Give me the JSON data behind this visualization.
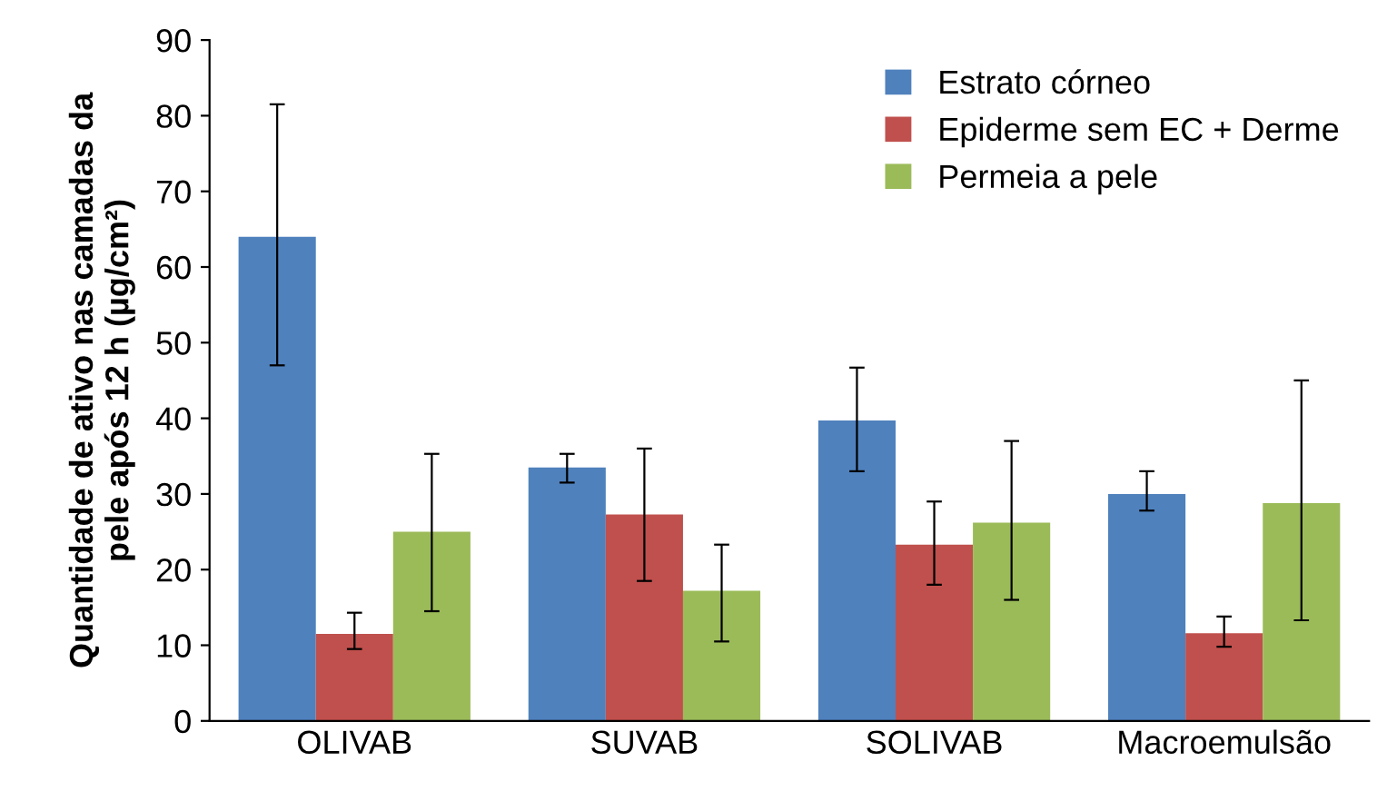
{
  "chart_data": {
    "type": "bar",
    "ylabel": "Quantidade de ativo nas camadas da\npele após 12 h (µg/cm²)",
    "categories": [
      "OLIVAB",
      "SUVAB",
      "SOLIVAB",
      "Macroemulsão"
    ],
    "series": [
      {
        "name": "Estrato córneo",
        "color": "#4f81bd",
        "values": [
          64,
          33.5,
          39.7,
          30
        ],
        "errors": [
          [
            47,
            81.5
          ],
          [
            31.5,
            35.3
          ],
          [
            33,
            46.7
          ],
          [
            27.8,
            33
          ]
        ]
      },
      {
        "name": "Epiderme sem EC + Derme",
        "color": "#c0504d",
        "values": [
          11.5,
          27.3,
          23.3,
          11.6
        ],
        "errors": [
          [
            9.5,
            14.3
          ],
          [
            18.5,
            36
          ],
          [
            18,
            29
          ],
          [
            9.8,
            13.8
          ]
        ]
      },
      {
        "name": "Permeia a pele",
        "color": "#9bbb59",
        "values": [
          25,
          17.2,
          26.2,
          28.8
        ],
        "errors": [
          [
            14.5,
            35.3
          ],
          [
            10.5,
            23.3
          ],
          [
            16,
            37
          ],
          [
            13.3,
            45
          ]
        ]
      }
    ],
    "ylim": [
      0,
      90
    ],
    "yticks": [
      0,
      10,
      20,
      30,
      40,
      50,
      60,
      70,
      80,
      90
    ],
    "grid": false,
    "legend": "top right"
  }
}
